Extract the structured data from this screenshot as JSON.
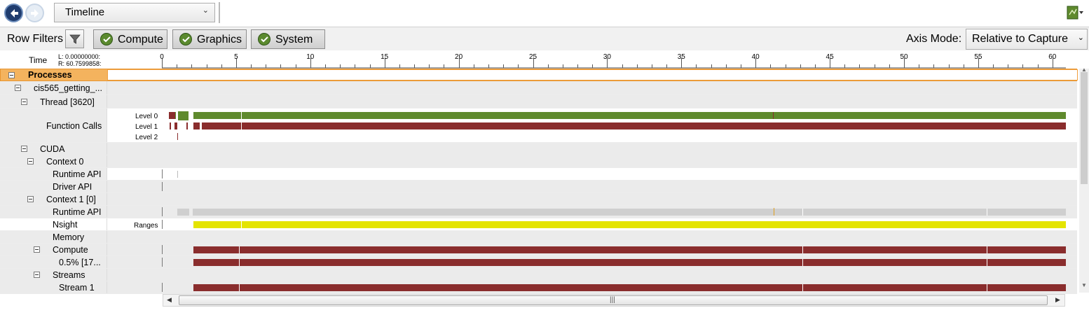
{
  "toolbar": {
    "view_select": "Timeline",
    "back_icon": "back-arrow-icon",
    "forward_icon": "forward-arrow-icon",
    "export_icon": "export-report-icon"
  },
  "filters": {
    "row_filters_label": "Row Filters",
    "compute_label": "Compute",
    "graphics_label": "Graphics",
    "system_label": "System",
    "axis_mode_label": "Axis Mode:",
    "axis_mode_value": "Relative to Capture"
  },
  "ruler": {
    "time_label": "Time",
    "range_left": "L: 0.00000000:",
    "range_right": "R: 60.7599858:",
    "ticks": [
      "0",
      "5",
      "10",
      "15",
      "20",
      "25",
      "30",
      "35",
      "40",
      "45",
      "50",
      "55",
      "60"
    ]
  },
  "rows": {
    "processes": "Processes",
    "process_name": "cis565_getting_...",
    "thread": "Thread [3620]",
    "function_calls": "Function Calls",
    "level0": "Level 0",
    "level1": "Level 1",
    "level2": "Level 2",
    "cuda": "CUDA",
    "context0": "Context 0",
    "runtime_api_0": "Runtime API",
    "driver_api_0": "Driver API",
    "context1": "Context 1 [0]",
    "runtime_api_1": "Runtime API",
    "nsight": "Nsight",
    "ranges": "Ranges",
    "memory": "Memory",
    "compute": "Compute",
    "compute_pct": "0.5% [17...",
    "streams": "Streams",
    "stream1": "Stream 1"
  },
  "colors": {
    "green": "#5f8a2d",
    "red": "#8a2d2d",
    "yellow": "#e4e400",
    "grey": "#cfcfcf",
    "highlight": "#f4b35e"
  }
}
